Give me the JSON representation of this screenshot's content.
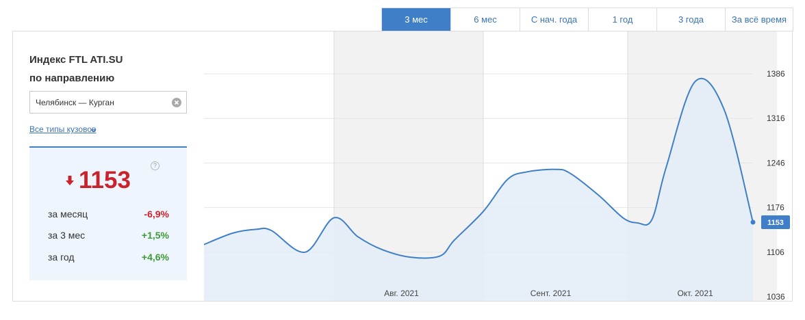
{
  "tabs": [
    {
      "label": "3 мес",
      "active": true
    },
    {
      "label": "6 мес",
      "active": false
    },
    {
      "label": "С нач. года",
      "active": false
    },
    {
      "label": "1 год",
      "active": false
    },
    {
      "label": "3 года",
      "active": false
    },
    {
      "label": "За всё время",
      "active": false
    }
  ],
  "panel": {
    "title_line1": "Индекс FTL ATI.SU",
    "title_line2": "по направлению",
    "route_value": "Челябинск — Курган",
    "body_types_label": "Все типы кузовов",
    "help_symbol": "?",
    "current_value": "1153",
    "stats": [
      {
        "label": "за месяц",
        "value": "-6,9%",
        "trend": "negative"
      },
      {
        "label": "за 3 мес",
        "value": "+1,5%",
        "trend": "positive"
      },
      {
        "label": "за год",
        "value": "+4,6%",
        "trend": "positive"
      }
    ]
  },
  "colors": {
    "accent": "#3f7fc7",
    "line": "#3f7fc7",
    "area": "#e3edf7",
    "shade": "#f2f2f2",
    "negative": "#c9232d",
    "positive": "#3d9b35"
  },
  "chart_data": {
    "type": "area",
    "x_labels": [
      "Авг. 2021",
      "Сент. 2021",
      "Окт. 2021"
    ],
    "yticks": [
      1036,
      1106,
      1176,
      1246,
      1316,
      1386
    ],
    "ylim": [
      1036,
      1420
    ],
    "last_value_label": "1153",
    "grid": true,
    "series": [
      {
        "x": [
          "2021-07-05",
          "2021-07-11",
          "2021-07-16",
          "2021-07-19",
          "2021-07-26",
          "2021-08-01",
          "2021-08-06",
          "2021-08-11",
          "2021-08-17",
          "2021-08-23",
          "2021-08-26",
          "2021-09-01",
          "2021-09-06",
          "2021-09-10",
          "2021-09-16",
          "2021-09-19",
          "2021-09-25",
          "2021-09-30",
          "2021-10-03",
          "2021-10-06",
          "2021-10-09",
          "2021-10-15",
          "2021-10-21",
          "2021-10-27"
        ],
        "y": [
          1118,
          1136,
          1142,
          1140,
          1106,
          1160,
          1130,
          1110,
          1098,
          1100,
          1125,
          1170,
          1220,
          1232,
          1236,
          1230,
          1195,
          1160,
          1152,
          1157,
          1240,
          1374,
          1330,
          1153
        ]
      }
    ]
  }
}
